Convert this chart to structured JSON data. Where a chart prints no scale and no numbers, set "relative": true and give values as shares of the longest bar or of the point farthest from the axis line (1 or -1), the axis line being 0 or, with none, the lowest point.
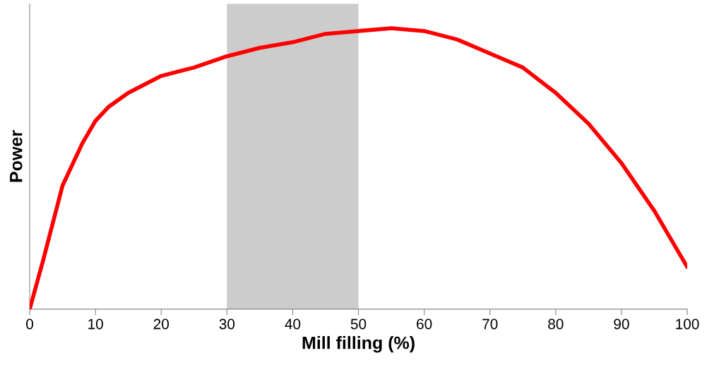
{
  "chart_data": {
    "type": "line",
    "xlabel": "Mill filling (%)",
    "ylabel": "Power",
    "relative": true,
    "xlim": [
      0,
      100
    ],
    "xticks": [
      0,
      10,
      20,
      30,
      40,
      50,
      60,
      70,
      80,
      90,
      100
    ],
    "series": [
      {
        "color": "#ff0000",
        "x": [
          0,
          2,
          5,
          8,
          10,
          12,
          15,
          20,
          25,
          30,
          35,
          40,
          45,
          50,
          55,
          60,
          65,
          70,
          75,
          80,
          85,
          90,
          95,
          100
        ],
        "values": [
          0,
          0.17,
          0.44,
          0.59,
          0.67,
          0.72,
          0.77,
          0.83,
          0.86,
          0.9,
          0.93,
          0.95,
          0.98,
          0.99,
          1.0,
          0.99,
          0.96,
          0.91,
          0.86,
          0.77,
          0.66,
          0.52,
          0.35,
          0.15
        ]
      }
    ],
    "bands": [
      {
        "axis": "x",
        "from": 30,
        "to": 50,
        "color": "#cccccc"
      }
    ],
    "grid": false,
    "legend": false,
    "marker": "none",
    "line_style": "solid"
  }
}
